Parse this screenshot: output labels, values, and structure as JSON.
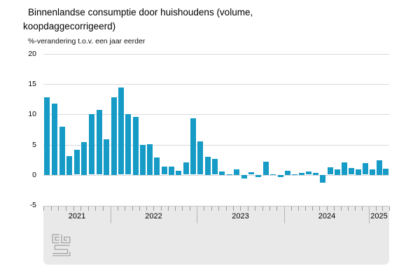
{
  "page": {
    "title": "Binnenlandse consumptie door huishoudens (volume,\nkoopdaggecorrigeerd)",
    "subtitle": "%-verandering t.o.v. een jaar eerder"
  },
  "branding": {
    "logo_name": "cbs-logo",
    "logo_color": "#ababab"
  },
  "chart_data": {
    "type": "bar",
    "title": "Binnenlandse consumptie door huishoudens (volume, koopdaggecorrigeerd)",
    "ylabel": "%-verandering t.o.v. een jaar eerder",
    "xlabel": "",
    "ylim": [
      -5,
      20
    ],
    "yticks": [
      20,
      15,
      10,
      5,
      0,
      -5
    ],
    "grid": "horizontal",
    "legend_position": "none",
    "first_bar_period": "april 2021",
    "last_bar_period": "maart 2025",
    "groups": [
      {
        "year": "2021",
        "values": [
          12.8,
          11.8,
          8.0,
          3.1,
          4.1,
          5.4,
          10.0,
          10.7,
          5.9
        ]
      },
      {
        "year": "2022",
        "values": [
          12.8,
          14.4,
          10.0,
          9.6,
          5.0,
          5.1,
          2.9,
          1.3,
          1.4,
          0.7,
          2.0,
          9.3
        ]
      },
      {
        "year": "2023",
        "values": [
          5.5,
          3.0,
          2.6,
          0.6,
          0.1,
          0.9,
          -0.6,
          0.4,
          -0.4,
          2.2,
          0.1,
          -0.3
        ]
      },
      {
        "year": "2024",
        "values": [
          0.7,
          0.1,
          0.3,
          0.5,
          0.3,
          -1.3,
          1.2,
          0.9,
          2.1,
          1.1,
          0.9,
          1.9
        ]
      },
      {
        "year": "2025",
        "values": [
          0.9,
          2.4,
          1.0
        ]
      }
    ],
    "colors": {
      "bar": "#159bc5",
      "grid_line": "#d9d9d9",
      "axis_band_bg": "#e9e9e9",
      "axis_band_border": "#c6c6c6",
      "month_tick": "#9a9a9a",
      "year_separator": "#b4b4b4",
      "label_text": "#000000"
    }
  }
}
